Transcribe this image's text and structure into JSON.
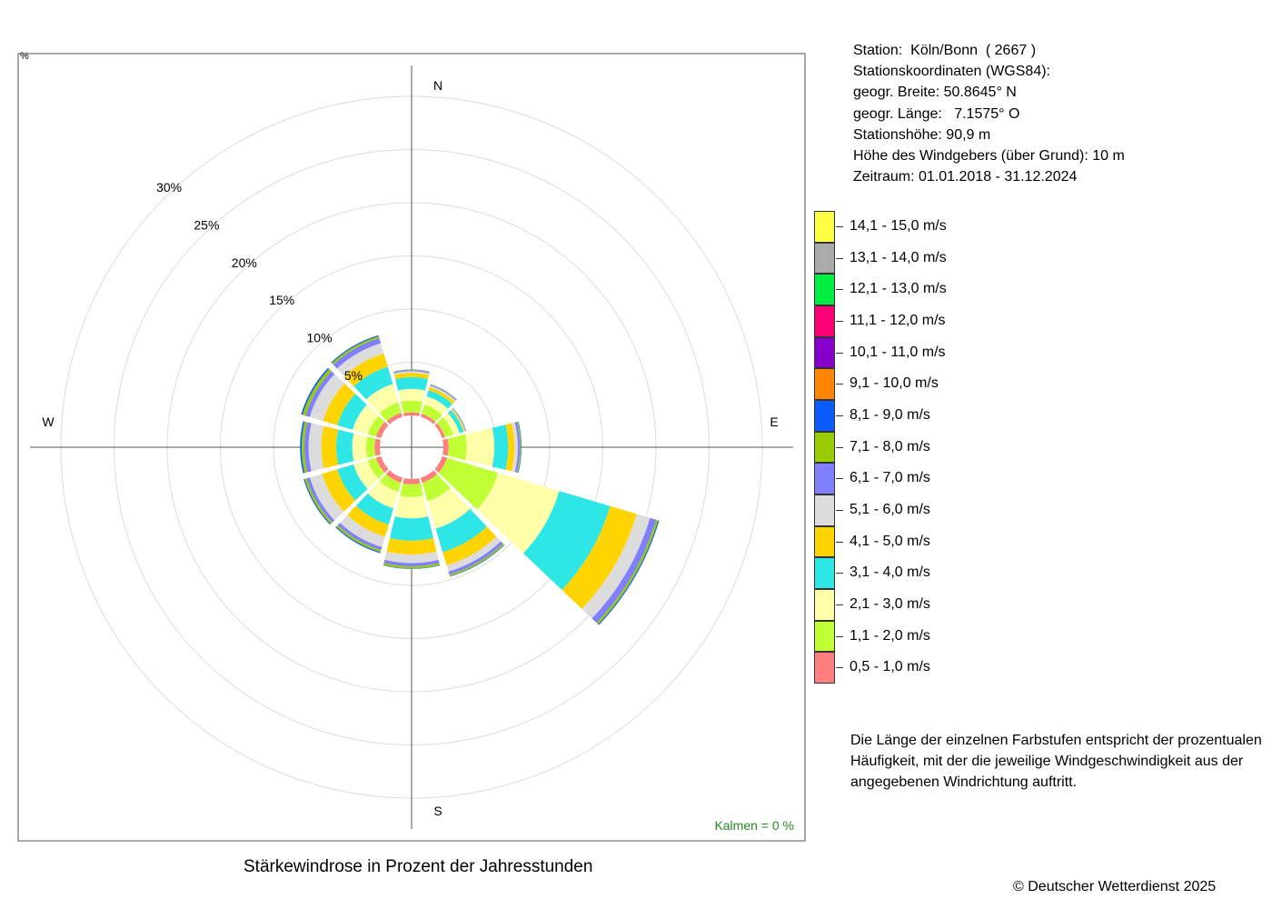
{
  "chart_data": {
    "type": "wind-rose",
    "title": "Stärkewindrose in Prozent der Jahresstunden",
    "compass": {
      "n": "N",
      "e": "E",
      "s": "S",
      "w": "W"
    },
    "ring_values": [
      5,
      10,
      15,
      20,
      25,
      30
    ],
    "ring_labels": [
      "5%",
      "10%",
      "15%",
      "20%",
      "25%",
      "30%"
    ],
    "axis_unit_label": "%",
    "calm_text": "Kalmen  =  0 %",
    "calm_color": "#228B22",
    "speed_classes": [
      {
        "label": "0,5 - 1,0 m/s",
        "color": "#FF7F7F"
      },
      {
        "label": "1,1 - 2,0 m/s",
        "color": "#BFFF33"
      },
      {
        "label": "2,1 - 3,0 m/s",
        "color": "#FFFFAA"
      },
      {
        "label": "3,1 - 4,0 m/s",
        "color": "#2EE6E6"
      },
      {
        "label": "4,1 - 5,0 m/s",
        "color": "#FFD400"
      },
      {
        "label": "5,1 - 6,0 m/s",
        "color": "#DCDCDC"
      },
      {
        "label": "6,1 - 7,0 m/s",
        "color": "#8080FF"
      },
      {
        "label": "7,1 - 8,0 m/s",
        "color": "#99CC00"
      },
      {
        "label": "8,1 - 9,0 m/s",
        "color": "#0A5CFF"
      },
      {
        "label": "9,1 - 10,0 m/s",
        "color": "#FF8400"
      },
      {
        "label": "10,1 - 11,0 m/s",
        "color": "#8800CC"
      },
      {
        "label": "11,1 - 12,0 m/s",
        "color": "#FF0077"
      },
      {
        "label": "12,1 - 13,0 m/s",
        "color": "#00EE44"
      },
      {
        "label": "13,1 - 14,0 m/s",
        "color": "#AAAAAA"
      },
      {
        "label": "14,1 - 15,0 m/s",
        "color": "#FFFF44"
      }
    ],
    "directions": [
      {
        "deg": 0,
        "values": [
          0.3,
          1.1,
          1.1,
          1.1,
          0.4,
          0.15,
          0.1,
          0.05,
          0.02
        ]
      },
      {
        "deg": 30,
        "values": [
          0.3,
          0.9,
          0.8,
          0.6,
          0.3,
          0.15,
          0.08,
          0.04,
          0.02
        ]
      },
      {
        "deg": 60,
        "values": [
          0.3,
          0.8,
          0.6,
          0.4,
          0.1,
          0.08,
          0.05,
          0.03,
          0.02
        ]
      },
      {
        "deg": 90,
        "values": [
          0.5,
          1.7,
          2.6,
          1.3,
          0.6,
          0.3,
          0.2,
          0.1,
          0.05
        ]
      },
      {
        "deg": 120,
        "values": [
          0.5,
          5.0,
          6.0,
          5.0,
          2.6,
          1.3,
          0.6,
          0.2,
          0.1
        ]
      },
      {
        "deg": 150,
        "values": [
          0.5,
          1.8,
          2.7,
          2.3,
          1.3,
          0.6,
          0.3,
          0.15,
          0.05
        ]
      },
      {
        "deg": 180,
        "values": [
          0.5,
          1.2,
          2.0,
          2.1,
          1.3,
          0.8,
          0.3,
          0.2,
          0.05
        ]
      },
      {
        "deg": 210,
        "values": [
          0.5,
          0.9,
          1.6,
          1.6,
          1.2,
          1.0,
          0.3,
          0.2,
          0.1
        ]
      },
      {
        "deg": 240,
        "values": [
          0.5,
          0.8,
          1.4,
          1.6,
          1.5,
          1.2,
          0.3,
          0.2,
          0.1
        ]
      },
      {
        "deg": 270,
        "values": [
          0.5,
          0.8,
          1.3,
          1.5,
          1.4,
          1.2,
          0.4,
          0.25,
          0.15
        ]
      },
      {
        "deg": 300,
        "values": [
          0.5,
          0.8,
          1.5,
          1.5,
          1.4,
          1.3,
          0.4,
          0.3,
          0.15
        ]
      },
      {
        "deg": 330,
        "values": [
          0.4,
          1.0,
          1.8,
          1.7,
          1.3,
          1.0,
          0.5,
          0.2,
          0.1
        ]
      }
    ]
  },
  "info": {
    "station": "Station:  Köln/Bonn  ( 2667 )",
    "coords_header": "Stationskoordinaten (WGS84):",
    "latitude": "geogr. Breite: 50.8645° N",
    "longitude": "geogr. Länge:   7.1575° O",
    "elevation": "Stationshöhe: 90,9 m",
    "sensor_height": "Höhe des Windgebers (über Grund): 10 m",
    "period": "Zeitraum: 01.01.2018 - 31.12.2024"
  },
  "note": [
    "Die Länge der einzelnen Farbstufen entspricht der prozentualen",
    "Häufigkeit, mit der die jeweilige Windgeschwindigkeit aus der",
    "angegebenen Windrichtung auftritt."
  ],
  "copyright": "© Deutscher Wetterdienst  2025"
}
